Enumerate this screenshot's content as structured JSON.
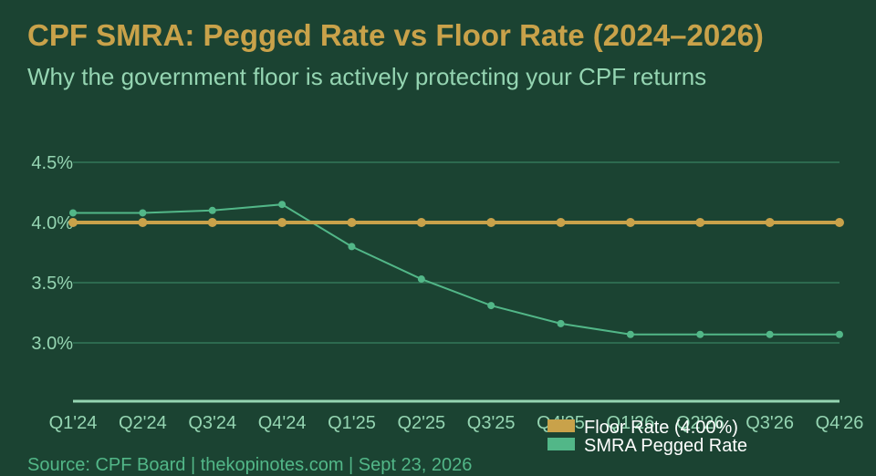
{
  "title": "CPF SMRA: Pegged Rate vs Floor Rate (2024–2026)",
  "subtitle": "Why the government floor is actively protecting your CPF returns",
  "source": "Source: CPF Board | thekopinotes.com | Sept 23, 2026",
  "chart_data": {
    "type": "line",
    "title": "CPF SMRA: Pegged Rate vs Floor Rate (2024–2026)",
    "subtitle": "Why the government floor is actively protecting your CPF returns",
    "xlabel": "",
    "ylabel": "",
    "categories": [
      "Q1'24",
      "Q2'24",
      "Q3'24",
      "Q4'24",
      "Q1'25",
      "Q2'25",
      "Q3'25",
      "Q4'25",
      "Q1'26",
      "Q2'26",
      "Q3'26",
      "Q4'26"
    ],
    "yticks": [
      "3.0%",
      "3.5%",
      "4.0%",
      "4.5%"
    ],
    "ytick_values": [
      3.0,
      3.5,
      4.0,
      4.5
    ],
    "ylim": [
      2.5,
      4.75
    ],
    "grid": "horizontal",
    "legend_position": "bottom-right",
    "series": [
      {
        "name": "Floor Rate (4.00%)",
        "color": "#c9a24a",
        "values": [
          4.0,
          4.0,
          4.0,
          4.0,
          4.0,
          4.0,
          4.0,
          4.0,
          4.0,
          4.0,
          4.0,
          4.0
        ]
      },
      {
        "name": "SMRA Pegged Rate",
        "color": "#52b788",
        "values": [
          4.08,
          4.08,
          4.1,
          4.15,
          3.8,
          3.53,
          3.31,
          3.16,
          3.07,
          3.07,
          3.07,
          3.07
        ]
      }
    ]
  }
}
